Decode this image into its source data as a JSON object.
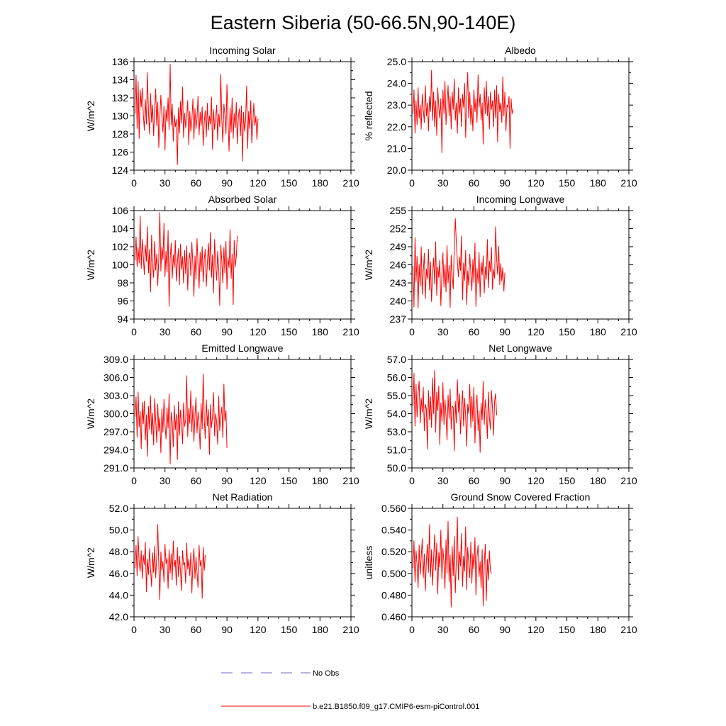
{
  "figure": {
    "title": "Eastern Siberia (50-66.5N,90-140E)"
  },
  "legend": {
    "items": [
      {
        "label": "No Obs",
        "color": "#6b6bbf",
        "style": "dashed"
      },
      {
        "label": "b.e21.B1850.f09_g17.CMIP6-esm-piControl.001",
        "color": "#ff0000",
        "style": "solid"
      }
    ]
  },
  "chart_data": [
    {
      "type": "line",
      "title": "Incoming Solar",
      "ylabel": "W/m^2",
      "xlim": [
        0,
        210
      ],
      "ylim": [
        124,
        136
      ],
      "xticks": [
        "0",
        "30",
        "60",
        "90",
        "120",
        "150",
        "180",
        "210"
      ],
      "yticks": [
        "124",
        "126",
        "128",
        "130",
        "132",
        "134",
        "136"
      ],
      "series": [
        {
          "name": "b.e21.B1850.f09_g17.CMIP6-esm-piControl.001",
          "color": "#ff0000",
          "x_start": 1,
          "x_step": 1,
          "values": [
            130.2,
            134.5,
            128.6,
            133.8,
            127.5,
            132.9,
            131.0,
            133.1,
            130.2,
            128.4,
            131.8,
            129.1,
            134.8,
            130.4,
            128.0,
            132.5,
            129.3,
            131.2,
            127.8,
            130.6,
            133.0,
            128.9,
            131.5,
            126.5,
            129.8,
            132.3,
            130.0,
            128.2,
            131.1,
            126.2,
            130.7,
            129.4,
            132.0,
            128.5,
            135.7,
            129.0,
            131.3,
            127.2,
            130.1,
            128.8,
            129.6,
            124.6,
            130.9,
            128.1,
            131.6,
            129.2,
            133.2,
            127.6,
            130.3,
            128.7,
            129.9,
            131.7,
            126.8,
            130.5,
            128.3,
            129.5,
            131.9,
            127.4,
            130.8,
            128.6,
            129.7,
            132.2,
            127.9,
            130.4,
            128.9,
            131.0,
            126.7,
            129.3,
            130.6,
            127.7,
            131.4,
            128.4,
            130.0,
            129.1,
            132.1,
            126.3,
            130.7,
            128.5,
            129.8,
            131.2,
            127.3,
            130.2,
            128.8,
            134.6,
            129.4,
            127.1,
            131.3,
            130.1,
            128.0,
            133.5,
            129.6,
            126.1,
            130.9,
            128.2,
            132.0,
            127.5,
            130.3,
            128.7,
            131.5,
            126.9,
            129.9,
            130.8,
            127.8,
            131.1,
            125.0,
            130.4,
            128.3,
            129.5,
            133.3,
            126.4,
            130.5,
            128.6,
            131.7,
            127.0,
            129.2,
            131.4,
            128.9,
            130.0,
            127.4,
            129.7
          ]
        }
      ]
    },
    {
      "type": "line",
      "title": "Albedo",
      "ylabel": "% reflected",
      "xlim": [
        0,
        210
      ],
      "ylim": [
        20.0,
        25.0
      ],
      "xticks": [
        "0",
        "30",
        "60",
        "90",
        "120",
        "150",
        "180",
        "210"
      ],
      "yticks": [
        "20.0",
        "21.0",
        "22.0",
        "23.0",
        "24.0",
        "25.0"
      ],
      "series": [
        {
          "name": "b.e21.B1850.f09_g17.CMIP6-esm-piControl.001",
          "color": "#ff0000",
          "x_start": 1,
          "x_step": 1,
          "values": [
            22.6,
            23.7,
            21.7,
            23.2,
            22.1,
            23.8,
            22.4,
            23.0,
            21.9,
            23.5,
            22.8,
            22.2,
            23.9,
            22.5,
            23.1,
            21.8,
            23.4,
            22.7,
            24.6,
            22.3,
            23.6,
            22.0,
            23.2,
            21.6,
            23.8,
            22.9,
            22.4,
            23.3,
            20.8,
            23.7,
            22.6,
            24.1,
            22.1,
            23.0,
            23.9,
            22.5,
            23.4,
            21.9,
            23.6,
            22.8,
            24.2,
            22.3,
            23.1,
            21.7,
            23.8,
            22.6,
            23.3,
            22.0,
            23.5,
            22.9,
            24.0,
            21.5,
            23.2,
            24.5,
            22.4,
            23.6,
            22.1,
            23.0,
            21.8,
            23.7,
            22.7,
            23.3,
            22.2,
            24.4,
            22.9,
            23.5,
            22.3,
            23.1,
            21.2,
            23.8,
            22.6,
            24.1,
            22.5,
            23.4,
            21.9,
            23.6,
            22.8,
            23.2,
            22.0,
            23.7,
            22.4,
            23.9,
            21.3,
            23.5,
            22.7,
            23.1,
            22.2,
            24.3,
            22.5,
            23.6,
            21.8,
            23.0,
            22.9,
            23.4,
            21.0,
            23.3,
            22.6,
            22.8
          ]
        }
      ]
    },
    {
      "type": "line",
      "title": "Absorbed Solar",
      "ylabel": "W/m^2",
      "xlim": [
        0,
        210
      ],
      "ylim": [
        94,
        106
      ],
      "xticks": [
        "0",
        "30",
        "60",
        "90",
        "120",
        "150",
        "180",
        "210"
      ],
      "yticks": [
        "94",
        "96",
        "98",
        "100",
        "102",
        "104",
        "106"
      ],
      "series": [
        {
          "name": "b.e21.B1850.f09_g17.CMIP6-esm-piControl.001",
          "color": "#ff0000",
          "x_start": 1,
          "x_step": 1,
          "values": [
            100.5,
            103.1,
            99.8,
            101.9,
            100.2,
            105.4,
            99.6,
            102.8,
            100.9,
            98.9,
            102.2,
            100.4,
            104.2,
            99.1,
            101.7,
            97.0,
            103.3,
            100.0,
            98.6,
            102.6,
            99.4,
            101.2,
            97.7,
            100.8,
            105.8,
            99.3,
            102.0,
            100.6,
            104.6,
            98.7,
            101.5,
            99.2,
            103.8,
            95.4,
            100.7,
            102.4,
            98.5,
            101.1,
            99.7,
            102.7,
            98.2,
            100.3,
            101.8,
            97.8,
            102.3,
            99.5,
            100.9,
            98.0,
            101.6,
            99.0,
            102.1,
            97.2,
            100.5,
            101.3,
            98.8,
            102.5,
            99.9,
            96.5,
            101.0,
            98.4,
            102.9,
            100.1,
            97.4,
            101.4,
            99.2,
            102.0,
            98.1,
            100.6,
            101.7,
            97.6,
            100.2,
            102.4,
            99.4,
            103.6,
            98.6,
            101.1,
            96.9,
            102.8,
            100.0,
            98.3,
            101.5,
            99.6,
            95.5,
            102.2,
            100.4,
            98.0,
            101.9,
            99.1,
            102.6,
            97.3,
            100.8,
            99.7,
            103.9,
            98.5,
            101.2,
            95.6,
            102.7,
            99.8,
            100.9,
            103.2
          ]
        }
      ]
    },
    {
      "type": "line",
      "title": "Incoming Longwave",
      "ylabel": "W/m^2",
      "xlim": [
        0,
        210
      ],
      "ylim": [
        237,
        255
      ],
      "xticks": [
        "0",
        "30",
        "60",
        "90",
        "120",
        "150",
        "180",
        "210"
      ],
      "yticks": [
        "237",
        "240",
        "243",
        "246",
        "249",
        "252",
        "255"
      ],
      "series": [
        {
          "name": "b.e21.B1850.f09_g17.CMIP6-esm-piControl.001",
          "color": "#ff0000",
          "x_start": 1,
          "x_step": 1,
          "values": [
            245.8,
            239.0,
            250.5,
            243.2,
            247.4,
            238.8,
            246.1,
            242.5,
            249.0,
            241.1,
            244.8,
            247.9,
            240.4,
            245.3,
            243.7,
            248.6,
            241.8,
            246.5,
            239.9,
            244.2,
            247.1,
            242.8,
            249.8,
            240.9,
            245.6,
            243.9,
            246.8,
            239.2,
            244.5,
            248.0,
            242.3,
            246.0,
            241.5,
            249.2,
            243.0,
            245.9,
            238.9,
            247.6,
            244.1,
            242.0,
            248.8,
            253.7,
            249.5,
            246.7,
            244.0,
            247.3,
            245.1,
            250.8,
            240.2,
            246.3,
            243.4,
            248.4,
            239.4,
            245.0,
            242.6,
            247.8,
            244.6,
            241.7,
            246.9,
            243.1,
            249.6,
            239.1,
            245.4,
            242.9,
            248.1,
            240.7,
            246.4,
            244.3,
            247.5,
            241.3,
            245.7,
            243.6,
            250.2,
            242.2,
            246.6,
            244.9,
            248.9,
            241.9,
            245.2,
            243.8,
            252.3,
            247.0,
            244.4,
            249.1,
            242.7,
            246.2,
            243.3,
            245.5,
            241.6,
            244.7
          ]
        }
      ]
    },
    {
      "type": "line",
      "title": "Emitted Longwave",
      "ylabel": "W/m^2",
      "xlim": [
        0,
        210
      ],
      "ylim": [
        291.0,
        309.0
      ],
      "xticks": [
        "0",
        "30",
        "60",
        "90",
        "120",
        "150",
        "180",
        "210"
      ],
      "yticks": [
        "291.0",
        "294.0",
        "297.0",
        "300.0",
        "303.0",
        "306.0",
        "309.0"
      ],
      "series": [
        {
          "name": "b.e21.B1850.f09_g17.CMIP6-esm-piControl.001",
          "color": "#ff0000",
          "x_start": 1,
          "x_step": 1,
          "values": [
            299.5,
            302.8,
            296.1,
            303.6,
            297.8,
            300.4,
            294.2,
            301.9,
            298.3,
            302.1,
            295.6,
            299.8,
            292.9,
            301.2,
            297.4,
            303.0,
            296.6,
            300.1,
            294.8,
            302.5,
            298.9,
            295.2,
            301.6,
            297.1,
            299.3,
            293.5,
            300.8,
            296.9,
            302.4,
            298.1,
            295.8,
            301.0,
            297.6,
            303.3,
            291.7,
            300.2,
            298.7,
            294.5,
            301.4,
            297.3,
            299.9,
            292.4,
            302.0,
            296.4,
            300.6,
            298.5,
            295.0,
            301.8,
            297.9,
            299.0,
            306.3,
            296.2,
            300.9,
            298.4,
            303.8,
            297.0,
            301.3,
            295.4,
            299.6,
            302.7,
            296.8,
            300.3,
            298.2,
            294.1,
            301.7,
            297.5,
            306.6,
            299.1,
            295.9,
            302.3,
            298.0,
            300.7,
            293.2,
            301.5,
            297.7,
            299.4,
            303.5,
            296.3,
            300.0,
            298.6,
            294.9,
            302.9,
            297.2,
            299.7,
            301.1,
            296.0,
            304.9,
            298.8,
            300.5,
            294.3
          ]
        }
      ]
    },
    {
      "type": "line",
      "title": "Net Longwave",
      "ylabel": "W/m^2",
      "xlim": [
        0,
        210
      ],
      "ylim": [
        50.0,
        57.0
      ],
      "xticks": [
        "0",
        "30",
        "60",
        "90",
        "120",
        "150",
        "180",
        "210"
      ],
      "yticks": [
        "50.0",
        "51.0",
        "53.0",
        "54.0",
        "55.0",
        "56.0",
        "57.0"
      ],
      "series": [
        {
          "name": "b.e21.B1850.f09_g17.CMIP6-esm-piControl.001",
          "color": "#ff0000",
          "x_start": 1,
          "x_step": 1,
          "values": [
            54.0,
            56.1,
            52.7,
            55.4,
            53.3,
            54.8,
            55.6,
            52.9,
            54.5,
            53.6,
            55.2,
            52.4,
            54.1,
            53.8,
            51.2,
            55.0,
            53.1,
            54.6,
            52.6,
            55.8,
            53.5,
            56.3,
            52.3,
            54.9,
            53.7,
            55.3,
            51.5,
            54.2,
            53.0,
            55.5,
            52.8,
            54.4,
            53.4,
            51.8,
            54.7,
            53.2,
            55.1,
            52.5,
            54.0,
            53.9,
            51.1,
            54.3,
            52.9,
            55.7,
            53.6,
            54.8,
            52.2,
            53.8,
            55.0,
            52.7,
            54.5,
            53.3,
            51.4,
            54.1,
            53.5,
            55.4,
            52.6,
            54.6,
            53.0,
            55.2,
            51.6,
            53.9,
            54.7,
            52.4,
            53.7,
            51.0,
            54.2,
            53.1,
            55.6,
            52.8,
            54.4,
            53.6,
            51.9,
            54.9,
            53.2,
            52.5,
            55.0,
            53.8,
            52.1,
            54.3,
            54.8,
            53.4
          ]
        }
      ]
    },
    {
      "type": "line",
      "title": "Net Radiation",
      "ylabel": "W/m^2",
      "xlim": [
        0,
        210
      ],
      "ylim": [
        42.0,
        52.0
      ],
      "xticks": [
        "0",
        "30",
        "60",
        "90",
        "120",
        "150",
        "180",
        "210"
      ],
      "yticks": [
        "42.0",
        "44.0",
        "46.0",
        "48.0",
        "50.0",
        "52.0"
      ],
      "series": [
        {
          "name": "b.e21.B1850.f09_g17.CMIP6-esm-piControl.001",
          "color": "#ff0000",
          "x_start": 1,
          "x_step": 1,
          "values": [
            46.5,
            48.6,
            45.8,
            49.4,
            47.0,
            46.2,
            48.1,
            45.5,
            47.7,
            46.8,
            48.9,
            44.3,
            47.3,
            45.9,
            48.3,
            46.4,
            44.8,
            47.9,
            46.1,
            48.5,
            45.6,
            47.5,
            50.5,
            46.7,
            43.6,
            48.0,
            46.3,
            47.1,
            45.2,
            48.7,
            46.9,
            47.4,
            44.6,
            48.2,
            46.0,
            47.8,
            45.4,
            49.0,
            46.6,
            47.2,
            44.9,
            48.4,
            45.7,
            47.6,
            46.2,
            44.4,
            48.1,
            46.8,
            47.0,
            45.1,
            48.8,
            46.4,
            47.3,
            45.8,
            47.9,
            44.2,
            46.9,
            48.3,
            45.5,
            47.5,
            46.1,
            44.7,
            48.6,
            46.7,
            47.2,
            43.7,
            48.4,
            46.3,
            47.7
          ]
        }
      ]
    },
    {
      "type": "line",
      "title": "Ground Snow Covered Fraction",
      "ylabel": "unitless",
      "xlim": [
        0,
        210
      ],
      "ylim": [
        0.46,
        0.56
      ],
      "xticks": [
        "0",
        "30",
        "60",
        "90",
        "120",
        "150",
        "180",
        "210"
      ],
      "yticks": [
        "0.460",
        "0.480",
        "0.500",
        "0.520",
        "0.540",
        "0.560"
      ],
      "series": [
        {
          "name": "b.e21.B1850.f09_g17.CMIP6-esm-piControl.001",
          "color": "#ff0000",
          "x_start": 1,
          "x_step": 1,
          "values": [
            0.505,
            0.53,
            0.492,
            0.521,
            0.508,
            0.487,
            0.526,
            0.499,
            0.515,
            0.532,
            0.496,
            0.518,
            0.484,
            0.512,
            0.527,
            0.501,
            0.545,
            0.497,
            0.522,
            0.489,
            0.514,
            0.536,
            0.503,
            0.528,
            0.481,
            0.519,
            0.506,
            0.54,
            0.495,
            0.523,
            0.51,
            0.486,
            0.531,
            0.5,
            0.548,
            0.492,
            0.517,
            0.469,
            0.525,
            0.498,
            0.534,
            0.482,
            0.513,
            0.552,
            0.494,
            0.52,
            0.507,
            0.537,
            0.488,
            0.516,
            0.502,
            0.543,
            0.485,
            0.524,
            0.509,
            0.496,
            0.529,
            0.491,
            0.518,
            0.504,
            0.533,
            0.48,
            0.515,
            0.526,
            0.497,
            0.511,
            0.487,
            0.522,
            0.47,
            0.508,
            0.527,
            0.475,
            0.513,
            0.494,
            0.521,
            0.503,
            0.5
          ]
        }
      ]
    }
  ]
}
